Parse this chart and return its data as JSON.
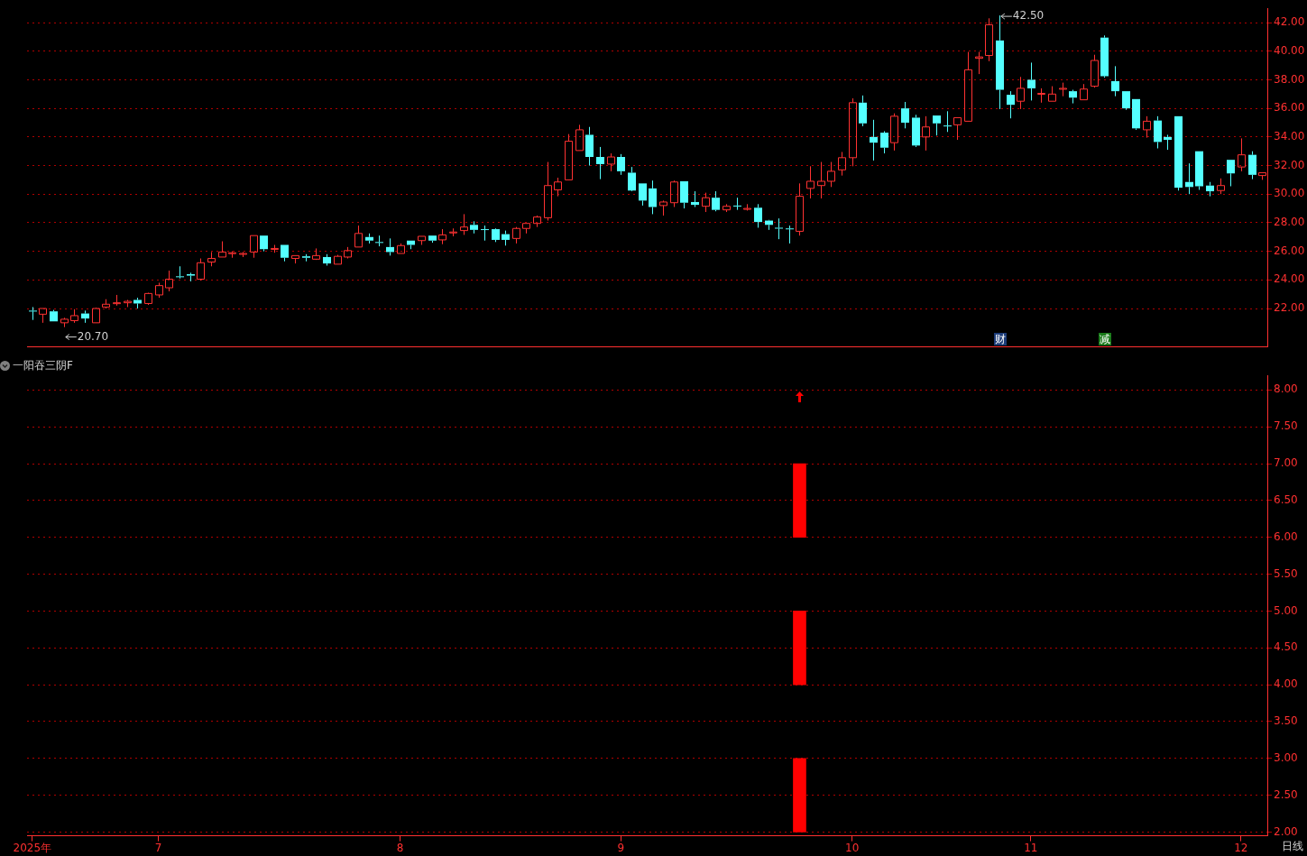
{
  "chart_data": [
    {
      "type": "candlestick",
      "categories": [
        null,
        null,
        null,
        null,
        null,
        null,
        null,
        null,
        null,
        null,
        null,
        null,
        null,
        null,
        null,
        null,
        null,
        null,
        null,
        null,
        null,
        null,
        null,
        null,
        null,
        null,
        null,
        null,
        null,
        null,
        null,
        null,
        null,
        null,
        null,
        null,
        null,
        null,
        null,
        null,
        null,
        null,
        null,
        null,
        null,
        null,
        null,
        null,
        null,
        null,
        null,
        null,
        null,
        null,
        null,
        null,
        null,
        null,
        null,
        null,
        null,
        null,
        null,
        null,
        null,
        null,
        null,
        null,
        null,
        null,
        null,
        null,
        null,
        null,
        null,
        null,
        null,
        null,
        null,
        null,
        null,
        null,
        null,
        null,
        null,
        null,
        null,
        null,
        null,
        null,
        null,
        null,
        null,
        null,
        null,
        null,
        null,
        null,
        null,
        null,
        null,
        null,
        null,
        null,
        null,
        null,
        null,
        null,
        null,
        null,
        null,
        null,
        null,
        null,
        null,
        null,
        null,
        null
      ],
      "ohlc": [
        [
          21.85,
          22.1,
          21.2,
          21.8
        ],
        [
          21.6,
          22.0,
          21.0,
          22.0
        ],
        [
          21.8,
          21.9,
          21.1,
          21.1
        ],
        [
          21.0,
          21.35,
          20.7,
          21.25
        ],
        [
          21.15,
          21.95,
          21.0,
          21.5
        ],
        [
          21.65,
          21.85,
          21.0,
          21.3
        ],
        [
          21.0,
          22.05,
          21.0,
          22.0
        ],
        [
          22.1,
          22.65,
          22.0,
          22.3
        ],
        [
          22.35,
          22.95,
          22.2,
          22.4
        ],
        [
          22.4,
          22.6,
          22.1,
          22.5
        ],
        [
          22.6,
          22.75,
          22.0,
          22.35
        ],
        [
          22.35,
          23.1,
          22.25,
          23.05
        ],
        [
          22.95,
          23.8,
          22.75,
          23.6
        ],
        [
          23.45,
          24.65,
          23.2,
          24.05
        ],
        [
          24.25,
          24.95,
          24.1,
          24.2
        ],
        [
          24.4,
          24.5,
          23.9,
          24.3
        ],
        [
          24.05,
          25.5,
          23.95,
          25.2
        ],
        [
          25.25,
          25.95,
          24.95,
          25.5
        ],
        [
          25.6,
          26.7,
          25.6,
          25.95
        ],
        [
          25.85,
          26.0,
          25.55,
          25.9
        ],
        [
          25.8,
          25.95,
          25.6,
          25.85
        ],
        [
          25.95,
          27.1,
          25.55,
          27.1
        ],
        [
          27.1,
          27.1,
          26.0,
          26.15
        ],
        [
          26.15,
          26.45,
          25.9,
          26.2
        ],
        [
          26.45,
          26.45,
          25.3,
          25.55
        ],
        [
          25.5,
          25.7,
          25.15,
          25.7
        ],
        [
          25.65,
          25.8,
          25.3,
          25.55
        ],
        [
          25.45,
          26.2,
          25.4,
          25.7
        ],
        [
          25.6,
          25.8,
          25.0,
          25.15
        ],
        [
          25.1,
          25.75,
          25.1,
          25.65
        ],
        [
          25.6,
          26.3,
          25.5,
          26.05
        ],
        [
          26.3,
          27.8,
          26.3,
          27.25
        ],
        [
          27.0,
          27.25,
          26.55,
          26.75
        ],
        [
          26.65,
          27.1,
          26.35,
          26.6
        ],
        [
          26.3,
          26.9,
          25.7,
          25.95
        ],
        [
          25.85,
          26.55,
          25.85,
          26.4
        ],
        [
          26.75,
          26.75,
          26.15,
          26.45
        ],
        [
          26.75,
          27.05,
          26.45,
          27.05
        ],
        [
          27.1,
          27.1,
          26.6,
          26.75
        ],
        [
          26.8,
          27.55,
          26.5,
          27.15
        ],
        [
          27.3,
          27.6,
          27.05,
          27.35
        ],
        [
          27.45,
          28.6,
          27.15,
          27.7
        ],
        [
          27.85,
          28.1,
          27.25,
          27.5
        ],
        [
          27.55,
          27.8,
          26.75,
          27.5
        ],
        [
          27.55,
          27.6,
          26.65,
          26.8
        ],
        [
          27.2,
          27.45,
          26.4,
          26.8
        ],
        [
          26.9,
          27.7,
          26.55,
          27.6
        ],
        [
          27.6,
          27.95,
          27.25,
          27.95
        ],
        [
          27.95,
          28.5,
          27.7,
          28.4
        ],
        [
          28.35,
          32.25,
          28.15,
          30.6
        ],
        [
          30.3,
          31.15,
          29.85,
          30.85
        ],
        [
          31.0,
          34.2,
          31.0,
          33.7
        ],
        [
          33.05,
          34.85,
          33.05,
          34.5
        ],
        [
          34.15,
          34.7,
          32.0,
          32.6
        ],
        [
          32.6,
          33.3,
          31.05,
          32.1
        ],
        [
          32.1,
          32.85,
          31.6,
          32.6
        ],
        [
          32.6,
          32.8,
          31.35,
          31.6
        ],
        [
          31.5,
          31.9,
          30.2,
          30.25
        ],
        [
          30.75,
          30.75,
          29.2,
          29.55
        ],
        [
          30.4,
          30.95,
          28.6,
          29.1
        ],
        [
          29.2,
          29.55,
          28.5,
          29.45
        ],
        [
          29.4,
          30.95,
          29.1,
          30.85
        ],
        [
          30.9,
          30.9,
          29.0,
          29.4
        ],
        [
          29.45,
          30.2,
          29.1,
          29.25
        ],
        [
          29.15,
          30.1,
          28.75,
          29.75
        ],
        [
          29.75,
          30.2,
          28.8,
          28.9
        ],
        [
          28.9,
          29.3,
          28.75,
          29.15
        ],
        [
          29.2,
          29.75,
          28.9,
          29.15
        ],
        [
          28.95,
          29.3,
          28.85,
          29.0
        ],
        [
          29.05,
          29.3,
          27.65,
          28.05
        ],
        [
          28.15,
          28.2,
          27.5,
          27.85
        ],
        [
          27.65,
          28.3,
          26.85,
          27.6
        ],
        [
          27.6,
          27.8,
          26.55,
          27.55
        ],
        [
          27.4,
          30.75,
          27.1,
          29.85
        ],
        [
          30.4,
          31.95,
          29.7,
          30.9
        ],
        [
          30.6,
          32.25,
          29.7,
          30.9
        ],
        [
          30.9,
          32.25,
          30.5,
          31.6
        ],
        [
          31.7,
          32.95,
          31.3,
          32.55
        ],
        [
          32.55,
          36.7,
          31.95,
          36.4
        ],
        [
          36.4,
          36.9,
          34.75,
          34.95
        ],
        [
          34.0,
          35.2,
          32.35,
          33.6
        ],
        [
          34.3,
          34.4,
          32.85,
          33.25
        ],
        [
          33.6,
          35.65,
          33.05,
          35.45
        ],
        [
          36.0,
          36.45,
          34.6,
          35.0
        ],
        [
          35.35,
          35.55,
          33.3,
          33.4
        ],
        [
          34.0,
          35.45,
          33.05,
          34.7
        ],
        [
          35.5,
          35.5,
          34.1,
          34.95
        ],
        [
          34.8,
          35.8,
          34.35,
          34.75
        ],
        [
          34.85,
          35.35,
          33.8,
          35.35
        ],
        [
          35.1,
          39.95,
          35.1,
          38.7
        ],
        [
          39.5,
          39.95,
          38.4,
          39.6
        ],
        [
          39.7,
          42.3,
          39.3,
          41.85
        ],
        [
          40.75,
          42.5,
          35.95,
          37.3
        ],
        [
          36.95,
          37.2,
          35.3,
          36.25
        ],
        [
          36.5,
          38.2,
          35.95,
          37.4
        ],
        [
          38.0,
          39.2,
          36.55,
          37.4
        ],
        [
          37.0,
          37.4,
          36.4,
          37.05
        ],
        [
          36.5,
          37.55,
          36.5,
          37.0
        ],
        [
          37.35,
          37.8,
          36.85,
          37.4
        ],
        [
          37.2,
          37.3,
          36.35,
          36.75
        ],
        [
          36.6,
          37.7,
          36.6,
          37.35
        ],
        [
          37.55,
          39.75,
          37.45,
          39.35
        ],
        [
          40.95,
          41.1,
          38.15,
          38.25
        ],
        [
          37.9,
          38.95,
          36.85,
          37.2
        ],
        [
          37.2,
          37.2,
          35.9,
          36.0
        ],
        [
          36.65,
          36.65,
          34.5,
          34.6
        ],
        [
          34.5,
          35.45,
          33.95,
          35.1
        ],
        [
          35.15,
          35.45,
          33.2,
          33.65
        ],
        [
          34.0,
          34.15,
          33.1,
          33.8
        ],
        [
          35.45,
          35.45,
          30.25,
          30.45
        ],
        [
          30.85,
          32.15,
          30.0,
          30.5
        ],
        [
          33.0,
          33.0,
          30.3,
          30.55
        ],
        [
          30.6,
          30.85,
          29.85,
          30.2
        ],
        [
          30.25,
          31.1,
          30.0,
          30.6
        ],
        [
          32.4,
          32.4,
          30.55,
          31.45
        ],
        [
          31.9,
          33.9,
          31.6,
          32.75
        ],
        [
          32.75,
          33.0,
          31.05,
          31.35
        ],
        [
          31.3,
          31.5,
          31.0,
          31.5
        ]
      ],
      "colors": [
        "#54ffff",
        "#ff3232",
        "#54ffff",
        "#ff3232",
        "#ff3232",
        "#54ffff",
        "#ff3232",
        "#ff3232",
        "#ff3232",
        "#ff3232",
        "#54ffff",
        "#ff3232",
        "#ff3232",
        "#ff3232",
        "#54ffff",
        "#54ffff",
        "#ff3232",
        "#ff3232",
        "#ff3232",
        "#ff3232",
        "#ff3232",
        "#ff3232",
        "#54ffff",
        "#ff3232",
        "#54ffff",
        "#ff3232",
        "#54ffff",
        "#ff3232",
        "#54ffff",
        "#ff3232",
        "#ff3232",
        "#ff3232",
        "#54ffff",
        "#54ffff",
        "#54ffff",
        "#ff3232",
        "#54ffff",
        "#ff3232",
        "#54ffff",
        "#ff3232",
        "#ff3232",
        "#ff3232",
        "#54ffff",
        "#54ffff",
        "#54ffff",
        "#54ffff",
        "#ff3232",
        "#ff3232",
        "#ff3232",
        "#ff3232",
        "#ff3232",
        "#ff3232",
        "#ff3232",
        "#54ffff",
        "#54ffff",
        "#ff3232",
        "#54ffff",
        "#54ffff",
        "#54ffff",
        "#54ffff",
        "#ff3232",
        "#ff3232",
        "#54ffff",
        "#54ffff",
        "#ff3232",
        "#54ffff",
        "#ff3232",
        "#54ffff",
        "#ff3232",
        "#54ffff",
        "#54ffff",
        "#54ffff",
        "#54ffff",
        "#ff3232",
        "#ff3232",
        "#ff3232",
        "#ff3232",
        "#ff3232",
        "#ff3232",
        "#54ffff",
        "#54ffff",
        "#54ffff",
        "#ff3232",
        "#54ffff",
        "#54ffff",
        "#ff3232",
        "#54ffff",
        "#54ffff",
        "#ff3232",
        "#ff3232",
        "#ff3232",
        "#ff3232",
        "#54ffff",
        "#54ffff",
        "#ff3232",
        "#54ffff",
        "#ff3232",
        "#ff3232",
        "#ff3232",
        "#54ffff",
        "#ff3232",
        "#ff3232",
        "#54ffff",
        "#54ffff",
        "#54ffff",
        "#54ffff",
        "#ff3232",
        "#54ffff",
        "#54ffff",
        "#54ffff",
        "#54ffff",
        "#54ffff",
        "#54ffff",
        "#ff3232",
        "#54ffff",
        "#ff3232",
        "#54ffff",
        "#ff3232"
      ],
      "ylim": [
        19.3,
        43.0
      ],
      "yticks": [
        {
          "value": 22,
          "label": "22.00"
        },
        {
          "value": 24,
          "label": "24.00"
        },
        {
          "value": 26,
          "label": "26.00"
        },
        {
          "value": 28,
          "label": "28.00"
        },
        {
          "value": 30,
          "label": "30.00"
        },
        {
          "value": 32,
          "label": "32.00"
        },
        {
          "value": 34,
          "label": "34.00"
        },
        {
          "value": 36,
          "label": "36.00"
        },
        {
          "value": 38,
          "label": "38.00"
        },
        {
          "value": 40,
          "label": "40.00"
        },
        {
          "value": 42,
          "label": "42.00"
        }
      ],
      "grid": "y",
      "tick_labels": "y",
      "annotations": [
        "42.50",
        "20.70",
        "财",
        "减"
      ]
    },
    {
      "type": "bar",
      "title": "一阳吞三阴F",
      "categories": [
        "2025年",
        null,
        null,
        null,
        null,
        null,
        null,
        null,
        null,
        null,
        null,
        null,
        "7",
        null,
        null,
        null,
        null,
        null,
        null,
        null,
        null,
        null,
        null,
        null,
        null,
        null,
        null,
        null,
        null,
        null,
        null,
        null,
        null,
        null,
        null,
        "8",
        null,
        null,
        null,
        null,
        null,
        null,
        null,
        null,
        null,
        null,
        null,
        null,
        null,
        null,
        null,
        null,
        null,
        null,
        null,
        null,
        "9",
        null,
        null,
        null,
        null,
        null,
        null,
        null,
        null,
        null,
        null,
        null,
        null,
        null,
        null,
        null,
        null,
        null,
        null,
        null,
        null,
        null,
        "10",
        null,
        null,
        null,
        null,
        null,
        null,
        null,
        null,
        null,
        null,
        null,
        null,
        null,
        null,
        null,
        null,
        "11",
        null,
        null,
        null,
        null,
        null,
        null,
        null,
        null,
        null,
        null,
        null,
        null,
        null,
        null,
        null,
        null,
        null,
        null,
        null,
        "12",
        null,
        null
      ],
      "series": [
        {
          "color": "#ff0000",
          "values": [
            null,
            null,
            null,
            null,
            null,
            null,
            null,
            null,
            null,
            null,
            null,
            null,
            null,
            null,
            null,
            null,
            null,
            null,
            null,
            null,
            null,
            null,
            null,
            null,
            null,
            null,
            null,
            null,
            null,
            null,
            null,
            null,
            null,
            null,
            null,
            null,
            null,
            null,
            null,
            null,
            null,
            null,
            null,
            null,
            null,
            null,
            null,
            null,
            null,
            null,
            null,
            null,
            null,
            null,
            null,
            null,
            null,
            null,
            null,
            null,
            null,
            null,
            null,
            null,
            null,
            null,
            null,
            null,
            null,
            null,
            null,
            null,
            null,
            1,
            null,
            null,
            null,
            null,
            null,
            null,
            null,
            null,
            null,
            null,
            null,
            null,
            null,
            null,
            null,
            null,
            null,
            null,
            null,
            null,
            null,
            null,
            null,
            null,
            null,
            null,
            null,
            null,
            null,
            null,
            null,
            null,
            null,
            null,
            null,
            null,
            null,
            null,
            null,
            null,
            null,
            null,
            null,
            null
          ],
          "base": [
            null,
            null,
            null,
            null,
            null,
            null,
            null,
            null,
            null,
            null,
            null,
            null,
            null,
            null,
            null,
            null,
            null,
            null,
            null,
            null,
            null,
            null,
            null,
            null,
            null,
            null,
            null,
            null,
            null,
            null,
            null,
            null,
            null,
            null,
            null,
            null,
            null,
            null,
            null,
            null,
            null,
            null,
            null,
            null,
            null,
            null,
            null,
            null,
            null,
            null,
            null,
            null,
            null,
            null,
            null,
            null,
            null,
            null,
            null,
            null,
            null,
            null,
            null,
            null,
            null,
            null,
            null,
            null,
            null,
            null,
            null,
            null,
            null,
            2,
            null,
            null,
            null,
            null,
            null,
            null,
            null,
            null,
            null,
            null,
            null,
            null,
            null,
            null,
            null,
            null,
            null,
            null,
            null,
            null,
            null,
            null,
            null,
            null,
            null,
            null,
            null,
            null,
            null,
            null,
            null,
            null,
            null,
            null,
            null,
            null,
            null,
            null,
            null,
            null,
            null,
            null,
            null,
            null
          ]
        },
        {
          "color": "#ff0000",
          "values": [
            null,
            null,
            null,
            null,
            null,
            null,
            null,
            null,
            null,
            null,
            null,
            null,
            null,
            null,
            null,
            null,
            null,
            null,
            null,
            null,
            null,
            null,
            null,
            null,
            null,
            null,
            null,
            null,
            null,
            null,
            null,
            null,
            null,
            null,
            null,
            null,
            null,
            null,
            null,
            null,
            null,
            null,
            null,
            null,
            null,
            null,
            null,
            null,
            null,
            null,
            null,
            null,
            null,
            null,
            null,
            null,
            null,
            null,
            null,
            null,
            null,
            null,
            null,
            null,
            null,
            null,
            null,
            null,
            null,
            null,
            null,
            null,
            null,
            1,
            null,
            null,
            null,
            null,
            null,
            null,
            null,
            null,
            null,
            null,
            null,
            null,
            null,
            null,
            null,
            null,
            null,
            null,
            null,
            null,
            null,
            null,
            null,
            null,
            null,
            null,
            null,
            null,
            null,
            null,
            null,
            null,
            null,
            null,
            null,
            null,
            null,
            null,
            null,
            null,
            null,
            null,
            null,
            null
          ],
          "base": [
            null,
            null,
            null,
            null,
            null,
            null,
            null,
            null,
            null,
            null,
            null,
            null,
            null,
            null,
            null,
            null,
            null,
            null,
            null,
            null,
            null,
            null,
            null,
            null,
            null,
            null,
            null,
            null,
            null,
            null,
            null,
            null,
            null,
            null,
            null,
            null,
            null,
            null,
            null,
            null,
            null,
            null,
            null,
            null,
            null,
            null,
            null,
            null,
            null,
            null,
            null,
            null,
            null,
            null,
            null,
            null,
            null,
            null,
            null,
            null,
            null,
            null,
            null,
            null,
            null,
            null,
            null,
            null,
            null,
            null,
            null,
            null,
            null,
            4,
            null,
            null,
            null,
            null,
            null,
            null,
            null,
            null,
            null,
            null,
            null,
            null,
            null,
            null,
            null,
            null,
            null,
            null,
            null,
            null,
            null,
            null,
            null,
            null,
            null,
            null,
            null,
            null,
            null,
            null,
            null,
            null,
            null,
            null,
            null,
            null,
            null,
            null,
            null,
            null,
            null,
            null,
            null,
            null
          ]
        },
        {
          "color": "#ff0000",
          "values": [
            null,
            null,
            null,
            null,
            null,
            null,
            null,
            null,
            null,
            null,
            null,
            null,
            null,
            null,
            null,
            null,
            null,
            null,
            null,
            null,
            null,
            null,
            null,
            null,
            null,
            null,
            null,
            null,
            null,
            null,
            null,
            null,
            null,
            null,
            null,
            null,
            null,
            null,
            null,
            null,
            null,
            null,
            null,
            null,
            null,
            null,
            null,
            null,
            null,
            null,
            null,
            null,
            null,
            null,
            null,
            null,
            null,
            null,
            null,
            null,
            null,
            null,
            null,
            null,
            null,
            null,
            null,
            null,
            null,
            null,
            null,
            null,
            null,
            1,
            null,
            null,
            null,
            null,
            null,
            null,
            null,
            null,
            null,
            null,
            null,
            null,
            null,
            null,
            null,
            null,
            null,
            null,
            null,
            null,
            null,
            null,
            null,
            null,
            null,
            null,
            null,
            null,
            null,
            null,
            null,
            null,
            null,
            null,
            null,
            null,
            null,
            null,
            null,
            null,
            null,
            null,
            null,
            null
          ],
          "base": [
            null,
            null,
            null,
            null,
            null,
            null,
            null,
            null,
            null,
            null,
            null,
            null,
            null,
            null,
            null,
            null,
            null,
            null,
            null,
            null,
            null,
            null,
            null,
            null,
            null,
            null,
            null,
            null,
            null,
            null,
            null,
            null,
            null,
            null,
            null,
            null,
            null,
            null,
            null,
            null,
            null,
            null,
            null,
            null,
            null,
            null,
            null,
            null,
            null,
            null,
            null,
            null,
            null,
            null,
            null,
            null,
            null,
            null,
            null,
            null,
            null,
            null,
            null,
            null,
            null,
            null,
            null,
            null,
            null,
            null,
            null,
            null,
            null,
            6,
            null,
            null,
            null,
            null,
            null,
            null,
            null,
            null,
            null,
            null,
            null,
            null,
            null,
            null,
            null,
            null,
            null,
            null,
            null,
            null,
            null,
            null,
            null,
            null,
            null,
            null,
            null,
            null,
            null,
            null,
            null,
            null,
            null,
            null,
            null,
            null,
            null,
            null,
            null,
            null,
            null,
            null,
            null,
            null
          ]
        }
      ],
      "ylim": [
        1.95,
        8.2
      ],
      "yticks": [
        {
          "value": 2,
          "label": "2.00"
        },
        {
          "value": 2.5,
          "label": "2.50"
        },
        {
          "value": 3,
          "label": "3.00"
        },
        {
          "value": 3.5,
          "label": "3.50"
        },
        {
          "value": 4,
          "label": "4.00"
        },
        {
          "value": 4.5,
          "label": "4.50"
        },
        {
          "value": 5,
          "label": "5.00"
        },
        {
          "value": 5.5,
          "label": "5.50"
        },
        {
          "value": 6,
          "label": "6.00"
        },
        {
          "value": 6.5,
          "label": "6.50"
        },
        {
          "value": 7,
          "label": "7.00"
        },
        {
          "value": 7.5,
          "label": "7.50"
        },
        {
          "value": 8,
          "label": "8.00"
        }
      ],
      "grid": "y",
      "annotations": [
        "日线"
      ]
    }
  ]
}
